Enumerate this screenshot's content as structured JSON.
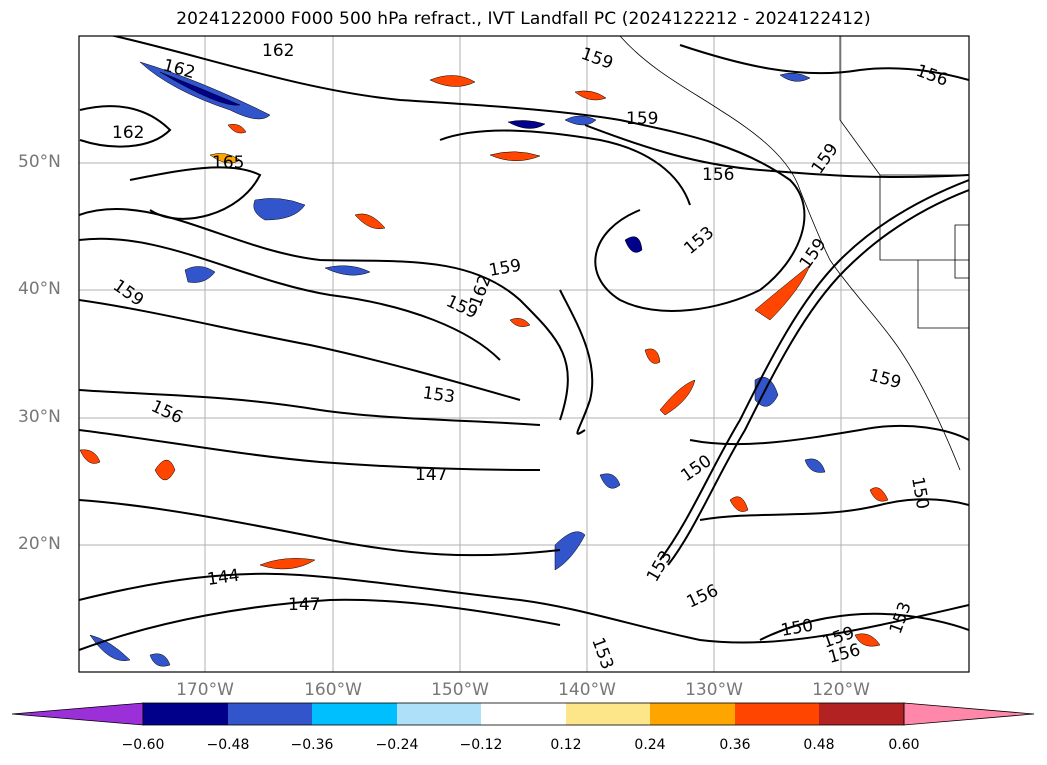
{
  "title": "2024122000 F000 500 hPa refract., IVT Landfall PC (2024122212 - 2024122412)",
  "map": {
    "lat_labels": [
      "50°N",
      "40°N",
      "30°N",
      "20°N"
    ],
    "lon_labels": [
      "170°W",
      "160°W",
      "150°W",
      "140°W",
      "130°W",
      "120°W"
    ],
    "contour_labels": [
      "162",
      "162",
      "162",
      "165",
      "159",
      "159",
      "159",
      "159",
      "162",
      "159",
      "159",
      "156",
      "156",
      "153",
      "156",
      "153",
      "147",
      "144",
      "147",
      "150",
      "153",
      "156",
      "153",
      "150",
      "150",
      "159",
      "159",
      "153",
      "159",
      "156"
    ]
  },
  "colorbar": {
    "tick_labels": [
      "−0.60",
      "−0.48",
      "−0.36",
      "−0.24",
      "−0.12",
      "0.12",
      "0.24",
      "0.36",
      "0.48",
      "0.60"
    ],
    "colors": [
      "#9b30d9",
      "#00008b",
      "#3355cc",
      "#00bfff",
      "#aee0fa",
      "#ffffff",
      "#fde68a",
      "#ffa500",
      "#ff4500",
      "#b22222",
      "#ff88aa"
    ]
  }
}
